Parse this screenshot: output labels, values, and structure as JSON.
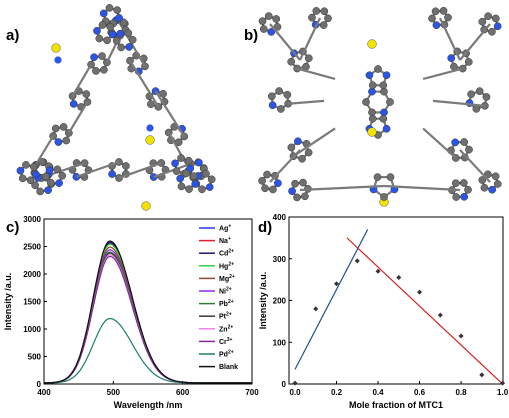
{
  "panels": {
    "a": "a)",
    "b": "b)",
    "c": "c)",
    "d": "d)"
  },
  "colors": {
    "carbon": "#6f6f6f",
    "nitrogen": "#2b55e6",
    "sulfur": "#f2e200",
    "bond": "#7a7a7a"
  },
  "molecule_icons": [
    "macrocycle-top-view",
    "macrocycle-side-view"
  ],
  "chart_data": [
    {
      "id": "c",
      "type": "line",
      "xlabel": "Wavelength /nm",
      "ylabel": "Intensity /a.u.",
      "xlim": [
        400,
        700
      ],
      "ylim": [
        0,
        3000
      ],
      "xticks": [
        400,
        500,
        600,
        700
      ],
      "yticks": [
        0,
        500,
        1000,
        1500,
        2000,
        2500,
        3000
      ],
      "legend_position": "top-right",
      "peak_x": 495,
      "width_sigma": 28,
      "series": [
        {
          "name": "Ag",
          "sup": "+",
          "color": "#1f3bff",
          "peak": 2560
        },
        {
          "name": "Na",
          "sup": "+",
          "color": "#e0202a",
          "peak": 2540
        },
        {
          "name": "Cd",
          "sup": "2+",
          "color": "#1a1a6e",
          "peak": 2550
        },
        {
          "name": "Hg",
          "sup": "2+",
          "color": "#36d33b",
          "peak": 2520
        },
        {
          "name": "Mg",
          "sup": "2+",
          "color": "#8b4a2b",
          "peak": 2470
        },
        {
          "name": "Ni",
          "sup": "2+",
          "color": "#8a2be2",
          "peak": 2420
        },
        {
          "name": "Pb",
          "sup": "2+",
          "color": "#2e7d32",
          "peak": 2380
        },
        {
          "name": "Pt",
          "sup": "2+",
          "color": "#3a3a3a",
          "peak": 2360
        },
        {
          "name": "Zn",
          "sup": "2+",
          "color": "#ee82ee",
          "peak": 2330
        },
        {
          "name": "Cr",
          "sup": "3+",
          "color": "#7b2d8b",
          "peak": 2300
        },
        {
          "name": "Pd",
          "sup": "2+",
          "color": "#1a7f6a",
          "peak": 1170
        },
        {
          "name": "Blank",
          "sup": "",
          "color": "#111111",
          "peak": 2580
        }
      ]
    },
    {
      "id": "d",
      "type": "scatter",
      "xlabel": "Mole fraction of MTC1",
      "ylabel": "Intensity /a.u.",
      "xlim": [
        0,
        1
      ],
      "ylim": [
        0,
        400
      ],
      "xticks": [
        0.0,
        0.2,
        0.4,
        0.6,
        0.8,
        1.0
      ],
      "yticks": [
        0,
        100,
        200,
        300,
        400
      ],
      "points": {
        "x": [
          0.0,
          0.1,
          0.2,
          0.3,
          0.4,
          0.5,
          0.6,
          0.7,
          0.8,
          0.9,
          1.0
        ],
        "y": [
          2,
          180,
          240,
          295,
          270,
          255,
          220,
          165,
          115,
          22,
          2
        ]
      },
      "fit_lines": [
        {
          "color": "#1f4e8c",
          "x": [
            0.0,
            0.35
          ],
          "y": [
            35,
            370
          ]
        },
        {
          "color": "#d62020",
          "x": [
            0.25,
            1.0
          ],
          "y": [
            350,
            0
          ]
        }
      ]
    }
  ]
}
